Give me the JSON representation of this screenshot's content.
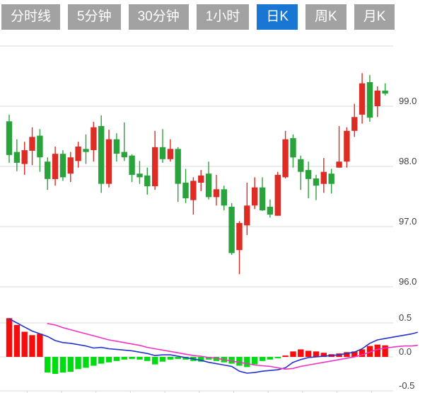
{
  "tabbar": {
    "items": [
      {
        "label": "分时线",
        "active": false
      },
      {
        "label": "5分钟",
        "active": false
      },
      {
        "label": "30分钟",
        "active": false
      },
      {
        "label": "1小时",
        "active": false
      },
      {
        "label": "日K",
        "active": true
      },
      {
        "label": "周K",
        "active": false
      },
      {
        "label": "月K",
        "active": false
      }
    ]
  },
  "colors": {
    "up": "#dd2c23",
    "down": "#2aa33c",
    "hist_up": "#f50d0d",
    "hist_down": "#00dc11",
    "dif_line": "#2433cc",
    "dea_line": "#f433c4",
    "grid": "#d9d9d9",
    "axis_text": "#404040",
    "tab_active_bg": "#1976d2",
    "tab_inactive_bg": "#a2a2a2",
    "tab_text": "#ffffff"
  },
  "chart_data": [
    {
      "type": "candlestick",
      "title": "",
      "xlabel": "",
      "ylabel": "",
      "ylim": [
        95.8,
        100.0
      ],
      "grid": true,
      "up_means": "close >= open (red, Chinese convention)",
      "y_gridlines": [
        100.0,
        99.0,
        98.0,
        97.0,
        96.0
      ],
      "y_ticks": [
        {
          "value": 99.0,
          "label": "99.0"
        },
        {
          "value": 98.0,
          "label": "98.0"
        },
        {
          "value": 97.0,
          "label": "97.0"
        },
        {
          "value": 96.0,
          "label": "96.0"
        }
      ],
      "ohlc_format": "[open, high, low, close]",
      "candles": [
        [
          98.75,
          98.86,
          98.06,
          98.19
        ],
        [
          98.24,
          98.45,
          97.92,
          98.06
        ],
        [
          98.04,
          98.41,
          97.86,
          98.27
        ],
        [
          98.26,
          98.65,
          98.02,
          98.49
        ],
        [
          98.51,
          98.62,
          97.91,
          98.15
        ],
        [
          98.08,
          98.15,
          97.61,
          97.79
        ],
        [
          97.79,
          98.33,
          97.68,
          98.21
        ],
        [
          98.21,
          98.27,
          97.76,
          97.82
        ],
        [
          97.88,
          98.24,
          97.74,
          98.15
        ],
        [
          98.09,
          98.41,
          97.98,
          98.33
        ],
        [
          98.29,
          98.53,
          98.04,
          98.24
        ],
        [
          98.27,
          98.74,
          98.08,
          98.65
        ],
        [
          98.67,
          98.85,
          97.56,
          97.71
        ],
        [
          97.71,
          98.61,
          97.65,
          98.45
        ],
        [
          98.45,
          98.55,
          98.08,
          98.21
        ],
        [
          98.24,
          98.73,
          98.09,
          98.15
        ],
        [
          98.18,
          98.2,
          97.74,
          97.86
        ],
        [
          97.88,
          98.09,
          97.71,
          97.82
        ],
        [
          97.85,
          97.98,
          97.53,
          97.67
        ],
        [
          97.67,
          98.59,
          97.61,
          98.32
        ],
        [
          98.32,
          98.62,
          98.06,
          98.12
        ],
        [
          98.12,
          98.45,
          98.08,
          98.29
        ],
        [
          98.29,
          98.32,
          97.41,
          97.71
        ],
        [
          97.73,
          97.96,
          97.39,
          97.47
        ],
        [
          97.44,
          97.82,
          97.2,
          97.76
        ],
        [
          97.73,
          97.94,
          97.59,
          97.85
        ],
        [
          97.88,
          98.08,
          97.45,
          97.49
        ],
        [
          97.49,
          97.86,
          97.35,
          97.62
        ],
        [
          97.62,
          97.68,
          97.27,
          97.35
        ],
        [
          97.33,
          97.39,
          96.53,
          96.56
        ],
        [
          96.61,
          97.09,
          96.21,
          97.06
        ],
        [
          97.02,
          97.73,
          96.86,
          97.35
        ],
        [
          97.35,
          97.82,
          97.29,
          97.65
        ],
        [
          97.65,
          97.82,
          97.26,
          97.27
        ],
        [
          97.33,
          97.45,
          97.15,
          97.2
        ],
        [
          97.18,
          97.91,
          97.18,
          97.86
        ],
        [
          97.82,
          98.59,
          97.8,
          98.45
        ],
        [
          98.47,
          98.53,
          97.98,
          98.15
        ],
        [
          98.12,
          98.18,
          97.61,
          97.91
        ],
        [
          97.94,
          98.08,
          97.47,
          97.79
        ],
        [
          97.8,
          97.86,
          97.44,
          97.68
        ],
        [
          97.71,
          98.14,
          97.56,
          97.91
        ],
        [
          97.88,
          97.96,
          97.55,
          97.71
        ],
        [
          97.98,
          98.67,
          97.98,
          98.08
        ],
        [
          98.08,
          98.65,
          97.98,
          98.59
        ],
        [
          98.59,
          99.04,
          98.49,
          98.82
        ],
        [
          98.86,
          99.55,
          98.71,
          99.38
        ],
        [
          99.4,
          99.52,
          98.74,
          98.81
        ],
        [
          99.0,
          99.33,
          98.82,
          99.26
        ],
        [
          99.26,
          99.38,
          99.18,
          99.21
        ]
      ]
    },
    {
      "type": "macd",
      "title": "",
      "ylim": [
        -0.55,
        0.55
      ],
      "grid": true,
      "y_gridlines": [
        0.5,
        0.0,
        -0.5
      ],
      "y_ticks": [
        {
          "value": 0.5,
          "label": "0.5"
        },
        {
          "value": 0.0,
          "label": "0.0"
        },
        {
          "value": -0.5,
          "label": "-0.5"
        }
      ],
      "histogram": [
        0.57,
        0.47,
        0.37,
        0.32,
        0.34,
        -0.23,
        -0.25,
        -0.23,
        -0.22,
        -0.18,
        -0.16,
        -0.13,
        -0.1,
        -0.08,
        -0.06,
        -0.04,
        -0.03,
        -0.04,
        -0.06,
        -0.11,
        -0.07,
        -0.04,
        -0.03,
        -0.04,
        -0.06,
        -0.07,
        -0.04,
        -0.06,
        -0.08,
        -0.1,
        -0.13,
        -0.15,
        -0.11,
        -0.06,
        -0.04,
        -0.02,
        0.02,
        0.08,
        0.11,
        0.09,
        0.08,
        0.06,
        0.04,
        0.05,
        0.07,
        0.08,
        0.11,
        0.16,
        0.18,
        0.17
      ],
      "dif": [
        [
          0,
          0.56
        ],
        [
          1,
          0.5
        ],
        [
          2,
          0.44
        ],
        [
          3,
          0.38
        ],
        [
          4,
          0.34
        ],
        [
          5,
          0.3
        ],
        [
          6,
          0.24
        ],
        [
          7,
          0.21
        ],
        [
          8,
          0.2
        ],
        [
          9,
          0.18
        ],
        [
          10,
          0.16
        ],
        [
          11,
          0.13
        ],
        [
          12,
          0.14
        ],
        [
          13,
          0.12
        ],
        [
          14,
          0.11
        ],
        [
          15,
          0.1
        ],
        [
          16,
          0.09
        ],
        [
          17,
          0.07
        ],
        [
          18,
          0.05
        ],
        [
          19,
          0.02
        ],
        [
          20,
          0.03
        ],
        [
          21,
          0.03
        ],
        [
          22,
          0.01
        ],
        [
          23,
          -0.01
        ],
        [
          24,
          -0.03
        ],
        [
          25,
          -0.05
        ],
        [
          26,
          -0.08
        ],
        [
          27,
          -0.1
        ],
        [
          28,
          -0.12
        ],
        [
          29,
          -0.14
        ],
        [
          30,
          -0.21
        ],
        [
          31,
          -0.24
        ],
        [
          32,
          -0.23
        ],
        [
          33,
          -0.21
        ],
        [
          34,
          -0.2
        ],
        [
          35,
          -0.19
        ],
        [
          36,
          -0.16
        ],
        [
          37,
          -0.08
        ],
        [
          38,
          -0.04
        ],
        [
          39,
          -0.01
        ],
        [
          40,
          0.0
        ],
        [
          41,
          0.01
        ],
        [
          42,
          0.02
        ],
        [
          43,
          0.03
        ],
        [
          44,
          0.05
        ],
        [
          45,
          0.07
        ],
        [
          46,
          0.12
        ],
        [
          47,
          0.2
        ],
        [
          48,
          0.25
        ],
        [
          49,
          0.27
        ],
        [
          50.5,
          0.3
        ],
        [
          51.5,
          0.32
        ],
        [
          52.5,
          0.34
        ],
        [
          53.2,
          0.36
        ]
      ],
      "dea": [
        [
          5,
          0.49
        ],
        [
          6,
          0.47
        ],
        [
          7,
          0.43
        ],
        [
          8,
          0.4
        ],
        [
          9,
          0.37
        ],
        [
          10,
          0.34
        ],
        [
          11,
          0.31
        ],
        [
          12,
          0.28
        ],
        [
          13,
          0.25
        ],
        [
          14,
          0.23
        ],
        [
          15,
          0.21
        ],
        [
          16,
          0.19
        ],
        [
          17,
          0.17
        ],
        [
          18,
          0.14
        ],
        [
          19,
          0.12
        ],
        [
          20,
          0.1
        ],
        [
          21,
          0.08
        ],
        [
          22,
          0.06
        ],
        [
          23,
          0.04
        ],
        [
          24,
          0.02
        ],
        [
          25,
          0.01
        ],
        [
          26,
          -0.01
        ],
        [
          27,
          -0.02
        ],
        [
          28,
          -0.04
        ],
        [
          29,
          -0.06
        ],
        [
          30,
          -0.08
        ],
        [
          31,
          -0.1
        ],
        [
          32,
          -0.12
        ],
        [
          33,
          -0.13
        ],
        [
          34,
          -0.14
        ],
        [
          35,
          -0.16
        ],
        [
          36,
          -0.18
        ],
        [
          37,
          -0.17
        ],
        [
          38,
          -0.14
        ],
        [
          39,
          -0.12
        ],
        [
          40,
          -0.1
        ],
        [
          41,
          -0.08
        ],
        [
          42,
          -0.06
        ],
        [
          43,
          -0.04
        ],
        [
          44,
          -0.02
        ],
        [
          45,
          0.0
        ],
        [
          46,
          0.03
        ],
        [
          47,
          0.07
        ],
        [
          48,
          0.11
        ],
        [
          49,
          0.13
        ],
        [
          50.5,
          0.15
        ],
        [
          51.5,
          0.16
        ],
        [
          52.5,
          0.16
        ],
        [
          53.2,
          0.17
        ]
      ]
    }
  ]
}
